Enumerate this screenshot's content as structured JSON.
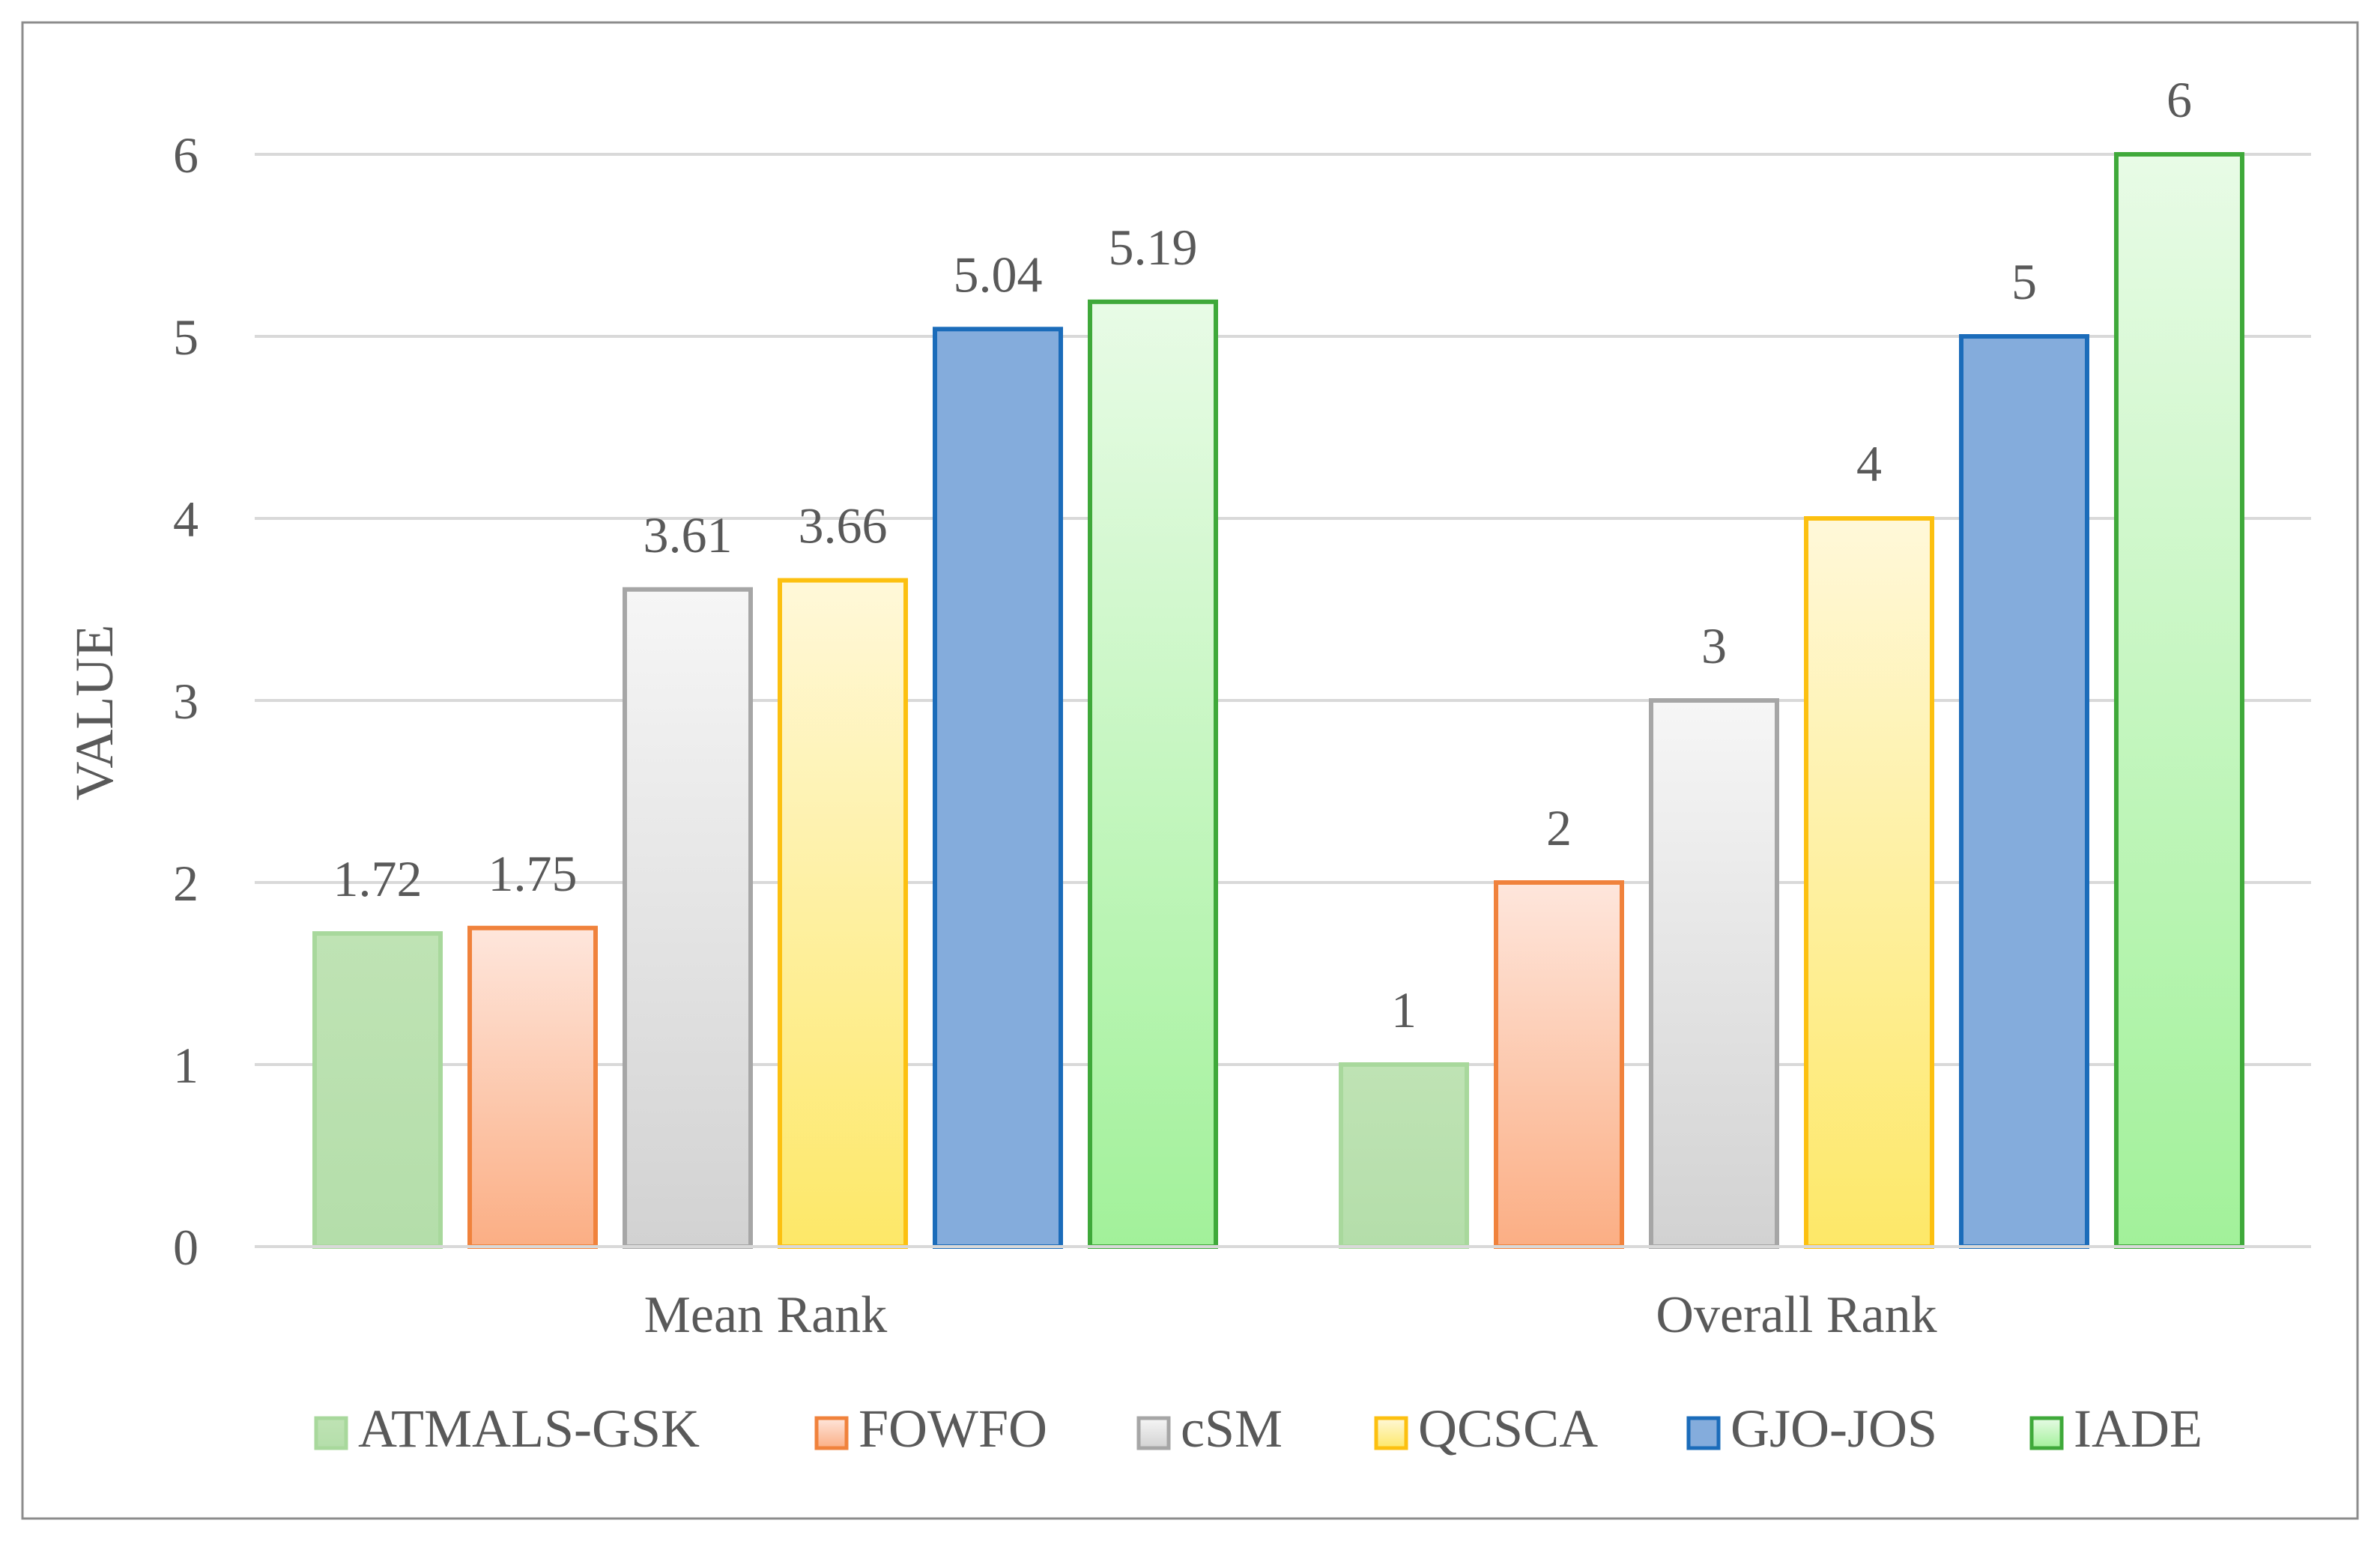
{
  "chart_data": {
    "type": "bar",
    "title": "",
    "xlabel": "",
    "ylabel": "VALUE",
    "ylim": [
      0,
      6
    ],
    "yticks": [
      0,
      1,
      2,
      3,
      4,
      5,
      6
    ],
    "grid": true,
    "legend_position": "bottom",
    "categories": [
      "Mean Rank",
      "Overall Rank"
    ],
    "series": [
      {
        "name": "ATMALS-GSK",
        "values": [
          1.72,
          1
        ],
        "labels": [
          "1.72",
          "1"
        ],
        "fill_top": "#bfe3b4",
        "fill_bottom": "#b4deaa",
        "stroke": "#a8d89c"
      },
      {
        "name": "FOWFO",
        "values": [
          1.75,
          2
        ],
        "labels": [
          "1.75",
          "2"
        ],
        "fill_top": "#fee6dc",
        "fill_bottom": "#fbae84",
        "stroke": "#f0823c"
      },
      {
        "name": "cSM",
        "values": [
          3.61,
          3
        ],
        "labels": [
          "3.61",
          "3"
        ],
        "fill_top": "#f6f6f6",
        "fill_bottom": "#d2d2d2",
        "stroke": "#a6a6a6"
      },
      {
        "name": "QCSCA",
        "values": [
          3.66,
          4
        ],
        "labels": [
          "3.66",
          "4"
        ],
        "fill_top": "#fff8d9",
        "fill_bottom": "#fde868",
        "stroke": "#fcc010"
      },
      {
        "name": "GJO-JOS",
        "values": [
          5.04,
          5
        ],
        "labels": [
          "5.04",
          "5"
        ],
        "fill_top": "#84acdc",
        "fill_bottom": "#84acdc",
        "stroke": "#1b6cba"
      },
      {
        "name": "IADE",
        "values": [
          5.19,
          6
        ],
        "labels": [
          "5.19",
          "6"
        ],
        "fill_top": "#e8fbe6",
        "fill_bottom": "#a2f19a",
        "stroke": "#3fa93a"
      }
    ]
  }
}
